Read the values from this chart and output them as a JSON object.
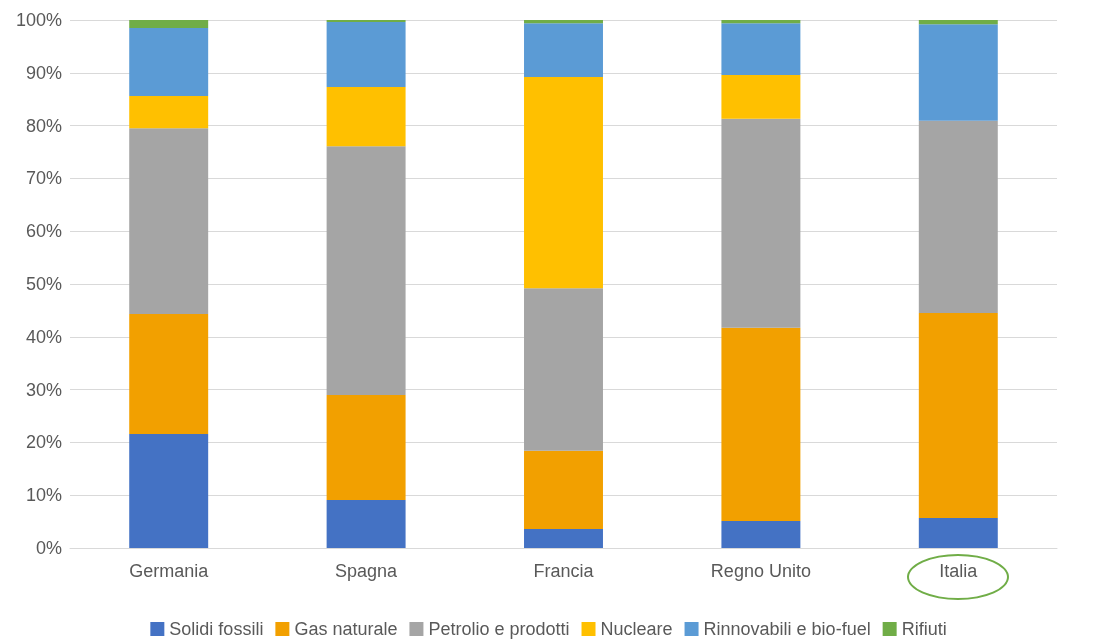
{
  "chart_data": {
    "type": "bar",
    "stacked": true,
    "categories": [
      "Germania",
      "Spagna",
      "Francia",
      "Regno Unito",
      "Italia"
    ],
    "series": [
      {
        "name": "Solidi fossili",
        "color": "#4472c4",
        "values": [
          21.6,
          9.1,
          3.6,
          5.1,
          5.7
        ]
      },
      {
        "name": "Gas naturale",
        "color": "#f2a000",
        "values": [
          22.7,
          19.9,
          14.8,
          36.6,
          38.8
        ]
      },
      {
        "name": "Petrolio e prodotti",
        "color": "#a5a5a5",
        "values": [
          35.2,
          47.1,
          30.8,
          39.6,
          36.4
        ]
      },
      {
        "name": "Nucleare",
        "color": "#ffc000",
        "values": [
          6.1,
          11.2,
          40.0,
          8.3,
          0
        ]
      },
      {
        "name": "Rinnovabili e bio-fuel",
        "color": "#5b9bd5",
        "values": [
          12.9,
          12.3,
          10.2,
          9.8,
          18.3
        ]
      },
      {
        "name": "Rifiuti",
        "color": "#70ad47",
        "values": [
          1.5,
          0.4,
          0.6,
          0.6,
          0.8
        ]
      }
    ],
    "ylim": [
      0,
      100
    ],
    "yticks": [
      {
        "value": 0,
        "label": "0%"
      },
      {
        "value": 10,
        "label": "10%"
      },
      {
        "value": 20,
        "label": "20%"
      },
      {
        "value": 30,
        "label": "30%"
      },
      {
        "value": 40,
        "label": "40%"
      },
      {
        "value": 50,
        "label": "50%"
      },
      {
        "value": 60,
        "label": "60%"
      },
      {
        "value": 70,
        "label": "70%"
      },
      {
        "value": 80,
        "label": "80%"
      },
      {
        "value": 90,
        "label": "90%"
      },
      {
        "value": 100,
        "label": "100%"
      }
    ],
    "grid": "y",
    "legend": "bottom"
  }
}
